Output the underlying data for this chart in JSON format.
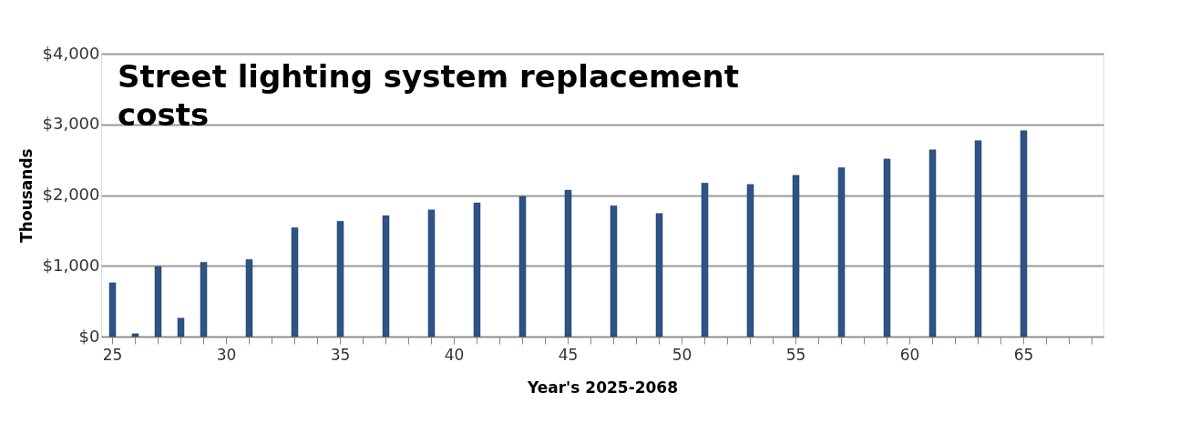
{
  "chart_data": {
    "type": "bar",
    "title": "Street lighting system replacement costs",
    "xlabel": "Year's 2025-2068",
    "ylabel": "Thousands",
    "categories": [
      "25",
      null,
      null,
      null,
      null,
      "30",
      null,
      null,
      null,
      null,
      "35",
      null,
      null,
      null,
      null,
      "40",
      null,
      null,
      null,
      null,
      "45",
      null,
      null,
      null,
      null,
      "50",
      null,
      null,
      null,
      null,
      "55",
      null,
      null,
      null,
      null,
      "60",
      null,
      null,
      null,
      null,
      "65",
      null,
      null,
      null
    ],
    "values": [
      760,
      40,
      990,
      260,
      1050,
      null,
      1090,
      null,
      1540,
      null,
      1630,
      null,
      1710,
      null,
      1790,
      null,
      1890,
      null,
      1980,
      null,
      2070,
      null,
      1850,
      null,
      1740,
      null,
      2170,
      null,
      2150,
      null,
      2280,
      null,
      2390,
      null,
      2510,
      null,
      2640,
      null,
      2770,
      null,
      2910,
      null,
      null,
      null
    ],
    "color": "#2e5486",
    "ylim": [
      0,
      4000
    ],
    "yticks": [
      {
        "value": 0,
        "label": "$0"
      },
      {
        "value": 1000,
        "label": "$1,000"
      },
      {
        "value": 2000,
        "label": "$2,000"
      },
      {
        "value": 3000,
        "label": "$3,000"
      },
      {
        "value": 4000,
        "label": "$4,000"
      }
    ],
    "grid": "y"
  }
}
